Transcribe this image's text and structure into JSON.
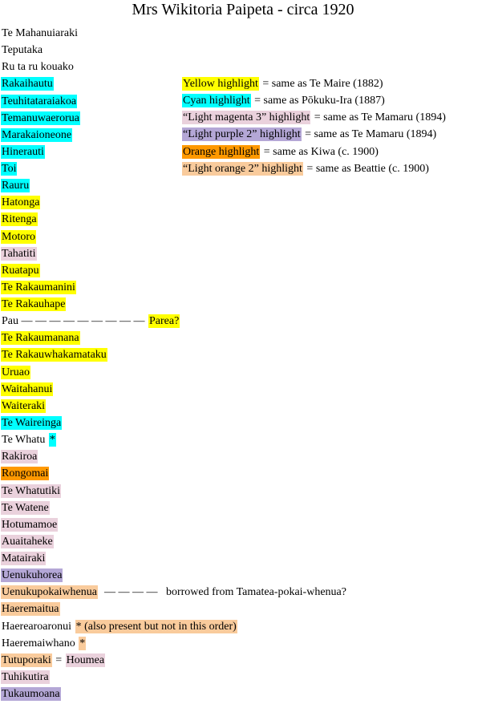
{
  "title": "Mrs Wikitoria Paipeta - circa 1920",
  "lines": [
    [
      {
        "text": "Te Mahanuiaraki"
      }
    ],
    [
      {
        "text": "Teputaka"
      }
    ],
    [
      {
        "text": "Ru ta ru kouako"
      }
    ],
    [
      {
        "text": "Rakaihautu",
        "bg": "#00ffff"
      }
    ],
    [
      {
        "text": "Teuhitataraiakoa",
        "bg": "#00ffff"
      }
    ],
    [
      {
        "text": "Temanuwaerorua",
        "bg": "#00ffff"
      }
    ],
    [
      {
        "text": "Marakaioneone",
        "bg": "#00ffff"
      }
    ],
    [
      {
        "text": "Hinerauti",
        "bg": "#00ffff"
      }
    ],
    [
      {
        "text": "Toi",
        "bg": "#00ffff"
      }
    ],
    [
      {
        "text": "Rauru",
        "bg": "#00ffff"
      }
    ],
    [
      {
        "text": "Hatonga",
        "bg": "#ffff00"
      }
    ],
    [
      {
        "text": "Ritenga",
        "bg": "#ffff00"
      }
    ],
    [
      {
        "text": "Motoro",
        "bg": "#ffff00"
      }
    ],
    [
      {
        "text": "Tahatiti",
        "bg": "#ead1dc"
      }
    ],
    [
      {
        "text": "Ruatapu",
        "bg": "#ffff00"
      }
    ],
    [
      {
        "text": "Te Rakaumanini",
        "bg": "#ffff00"
      }
    ],
    [
      {
        "text": "Te Rakauhape",
        "bg": "#ffff00"
      }
    ],
    [
      {
        "text": "Pau — — — — — — — — — "
      },
      {
        "text": "Parea?",
        "bg": "#ffff00"
      }
    ],
    [
      {
        "text": "Te Rakaumanana",
        "bg": "#ffff00"
      }
    ],
    [
      {
        "text": "Te Rakauwhakamataku",
        "bg": "#ffff00"
      }
    ],
    [
      {
        "text": "Uruao",
        "bg": "#ffff00"
      }
    ],
    [
      {
        "text": "Waitahanui",
        "bg": "#ffff00"
      }
    ],
    [
      {
        "text": "Waiteraki",
        "bg": "#ffff00"
      }
    ],
    [
      {
        "text": "Te Waireinga",
        "bg": "#00ffff"
      }
    ],
    [
      {
        "text": "Te Whatu "
      },
      {
        "text": "*",
        "bg": "#00ffff"
      }
    ],
    [
      {
        "text": "Rakiroa",
        "bg": "#ead1dc"
      }
    ],
    [
      {
        "text": "Rongomai",
        "bg": "#ff9900"
      }
    ],
    [
      {
        "text": "Te Whatutiki",
        "bg": "#ead1dc"
      }
    ],
    [
      {
        "text": "Te Watene",
        "bg": "#ead1dc"
      }
    ],
    [
      {
        "text": "Hotumamoe",
        "bg": "#ead1dc"
      }
    ],
    [
      {
        "text": "Auaitaheke",
        "bg": "#ead1dc"
      }
    ],
    [
      {
        "text": "Matairaki",
        "bg": "#ead1dc"
      }
    ],
    [
      {
        "text": "Uenukuhorea",
        "bg": "#b4a7d6"
      }
    ],
    [
      {
        "text": "Uenukupokaiwhenua",
        "bg": "#f9cb9c"
      },
      {
        "text": "  — — — —   borrowed from Tamatea-pokai-whenua?"
      }
    ],
    [
      {
        "text": "Haeremaitua",
        "bg": "#f9cb9c"
      }
    ],
    [
      {
        "text": "Haerearoaronui "
      },
      {
        "text": "* (also present but not in this order)",
        "bg": "#f9cb9c"
      }
    ],
    [
      {
        "text": "Haeremaiwhano "
      },
      {
        "text": "*",
        "bg": "#f9cb9c"
      }
    ],
    [
      {
        "text": "Tutuporaki",
        "bg": "#f9cb9c"
      },
      {
        "text": " = "
      },
      {
        "text": "Houmea",
        "bg": "#ead1dc"
      }
    ],
    [
      {
        "text": "Tuhikutira",
        "bg": "#ead1dc"
      }
    ],
    [
      {
        "text": "Tukaumoana",
        "bg": "#b4a7d6"
      }
    ]
  ],
  "legend": [
    [
      {
        "text": "Yellow highlight",
        "bg": "#ffff00"
      },
      {
        "text": " = same as Te Maire (1882)"
      }
    ],
    [
      {
        "text": "Cyan highlight",
        "bg": "#00ffff"
      },
      {
        "text": " = same as Pōkuku-Ira (1887)"
      }
    ],
    [
      {
        "text": "“Light magenta 3” highlight",
        "bg": "#ead1dc"
      },
      {
        "text": " = same as Te Mamaru (1894)"
      }
    ],
    [
      {
        "text": "“Light purple 2” highlight",
        "bg": "#b4a7d6"
      },
      {
        "text": " = same as Te Mamaru (1894)"
      }
    ],
    [
      {
        "text": "Orange highlight",
        "bg": "#ff9900"
      },
      {
        "text": " = same as Kiwa (c. 1900)"
      }
    ],
    [
      {
        "text": "“Light orange 2” highlight",
        "bg": "#f9cb9c"
      },
      {
        "text": " = same as Beattie (c. 1900)"
      }
    ]
  ]
}
